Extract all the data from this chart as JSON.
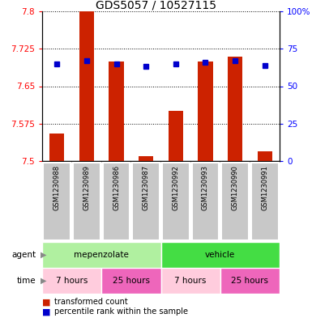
{
  "title": "GDS5057 / 10527115",
  "samples": [
    "GSM1230988",
    "GSM1230989",
    "GSM1230986",
    "GSM1230987",
    "GSM1230992",
    "GSM1230993",
    "GSM1230990",
    "GSM1230991"
  ],
  "red_values": [
    7.555,
    7.8,
    7.7,
    7.51,
    7.6,
    7.7,
    7.71,
    7.52
  ],
  "blue_percentiles": [
    65,
    67,
    65,
    63,
    65,
    66,
    67,
    64
  ],
  "ylim_left": [
    7.5,
    7.8
  ],
  "ylim_right": [
    0,
    100
  ],
  "yticks_left": [
    7.5,
    7.575,
    7.65,
    7.725,
    7.8
  ],
  "yticks_right": [
    0,
    25,
    50,
    75,
    100
  ],
  "ytick_labels_left": [
    "7.5",
    "7.575",
    "7.65",
    "7.725",
    "7.8"
  ],
  "ytick_labels_right": [
    "0",
    "25",
    "50",
    "75",
    "100%"
  ],
  "agent_groups": [
    {
      "label": "mepenzolate",
      "start": 0,
      "end": 4,
      "color": "#B0F0A0"
    },
    {
      "label": "vehicle",
      "start": 4,
      "end": 8,
      "color": "#44DD44"
    }
  ],
  "time_groups": [
    {
      "label": "7 hours",
      "start": 0,
      "end": 2,
      "color": "#FFCCDD"
    },
    {
      "label": "25 hours",
      "start": 2,
      "end": 4,
      "color": "#EE66BB"
    },
    {
      "label": "7 hours",
      "start": 4,
      "end": 6,
      "color": "#FFCCDD"
    },
    {
      "label": "25 hours",
      "start": 6,
      "end": 8,
      "color": "#EE66BB"
    }
  ],
  "red_color": "#CC2200",
  "blue_color": "#0000CC",
  "bar_bottom": 7.5,
  "bar_width": 0.5,
  "legend_red": "transformed count",
  "legend_blue": "percentile rank within the sample",
  "agent_label": "agent",
  "time_label": "time",
  "background_color": "#ffffff",
  "subplot_bg": "#C8C8C8",
  "title_fontsize": 10
}
